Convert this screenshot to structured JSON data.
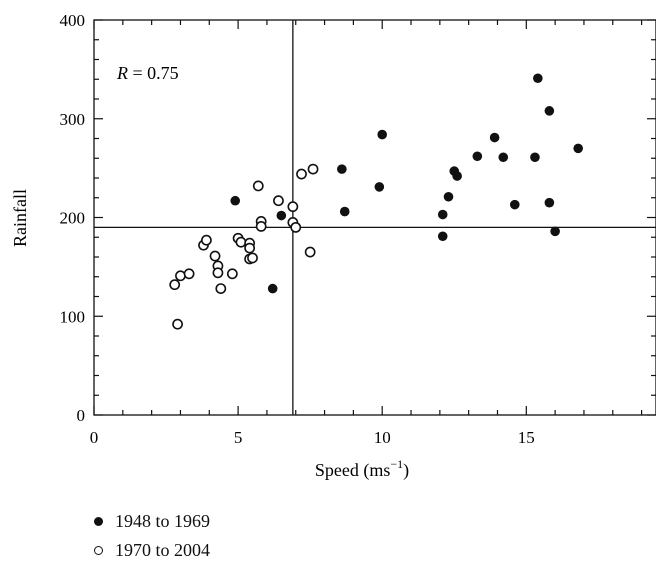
{
  "chart_data": {
    "type": "scatter",
    "annotation": {
      "prefix": "R",
      "text": " = 0.75"
    },
    "xlabel": "Speed (ms",
    "xlabel_sup": "−1",
    "xlabel_suffix": ")",
    "ylabel": "Rainfall",
    "xlim": [
      0,
      19.5
    ],
    "ylim": [
      0,
      400
    ],
    "xticks": [
      0,
      5,
      10,
      15
    ],
    "yticks": [
      0,
      100,
      200,
      300,
      400
    ],
    "reference_lines": {
      "x": 6.9,
      "y": 190
    },
    "grid": false,
    "legend_position": "bottom-left",
    "series": [
      {
        "name": "1948 to 1969",
        "marker": "filled-circle",
        "color": "#111111",
        "points": [
          [
            4.9,
            217
          ],
          [
            6.2,
            128
          ],
          [
            6.5,
            202
          ],
          [
            8.6,
            249
          ],
          [
            8.7,
            206
          ],
          [
            9.9,
            231
          ],
          [
            10.0,
            284
          ],
          [
            12.1,
            203
          ],
          [
            12.1,
            181
          ],
          [
            12.3,
            221
          ],
          [
            12.5,
            247
          ],
          [
            12.6,
            242
          ],
          [
            13.3,
            262
          ],
          [
            13.9,
            281
          ],
          [
            14.2,
            261
          ],
          [
            14.6,
            213
          ],
          [
            15.3,
            261
          ],
          [
            15.4,
            341
          ],
          [
            15.8,
            308
          ],
          [
            15.8,
            215
          ],
          [
            16.0,
            186
          ],
          [
            16.8,
            270
          ]
        ]
      },
      {
        "name": "1970 to 2004",
        "marker": "open-circle",
        "color": "#111111",
        "points": [
          [
            2.8,
            132
          ],
          [
            2.9,
            92
          ],
          [
            3.0,
            141
          ],
          [
            3.3,
            143
          ],
          [
            3.8,
            172
          ],
          [
            3.9,
            177
          ],
          [
            4.2,
            161
          ],
          [
            4.3,
            151
          ],
          [
            4.3,
            144
          ],
          [
            4.4,
            128
          ],
          [
            4.8,
            143
          ],
          [
            5.0,
            179
          ],
          [
            5.1,
            175
          ],
          [
            5.4,
            174
          ],
          [
            5.4,
            169
          ],
          [
            5.4,
            158
          ],
          [
            5.5,
            159
          ],
          [
            5.7,
            232
          ],
          [
            5.8,
            196
          ],
          [
            5.8,
            191
          ],
          [
            6.4,
            217
          ],
          [
            6.9,
            211
          ],
          [
            6.9,
            195
          ],
          [
            7.0,
            190
          ],
          [
            7.2,
            244
          ],
          [
            7.5,
            165
          ],
          [
            7.6,
            249
          ]
        ]
      }
    ]
  }
}
